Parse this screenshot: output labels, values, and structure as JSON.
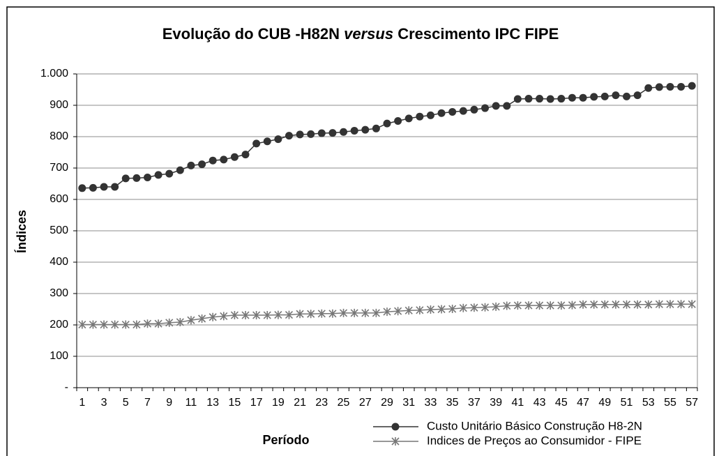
{
  "chart_data": {
    "type": "line",
    "title": [
      "Evolução do CUB -H82N",
      "versus",
      "Crescimento IPC FIPE"
    ],
    "y_label": "Índices",
    "x_label": "Período",
    "categories": [
      "1",
      null,
      "3",
      null,
      "5",
      null,
      "7",
      null,
      "9",
      null,
      "11",
      null,
      "13",
      null,
      "15",
      null,
      "17",
      null,
      "19",
      null,
      "21",
      null,
      "23",
      null,
      "25",
      null,
      "27",
      null,
      "29",
      null,
      "31",
      null,
      "33",
      null,
      "35",
      null,
      "37",
      null,
      "39",
      null,
      "41",
      null,
      "43",
      null,
      "45",
      null,
      "47",
      null,
      "49",
      null,
      "51",
      null,
      "53",
      null,
      "55",
      null,
      "57"
    ],
    "ylim": [
      0,
      1000
    ],
    "yticks": [
      {
        "value": 0,
        "label": "-"
      },
      100,
      200,
      300,
      400,
      500,
      600,
      700,
      800,
      900,
      {
        "value": 1000,
        "label": "1.000"
      }
    ],
    "grid": true,
    "legend": "bottom-right",
    "series": [
      {
        "name": "Custo Unitário Básico Construção H8-2N",
        "color": "#333333",
        "marker": "circle",
        "values": [
          636,
          637,
          640,
          640,
          667,
          668,
          670,
          678,
          682,
          693,
          708,
          712,
          724,
          727,
          735,
          743,
          778,
          785,
          792,
          803,
          807,
          808,
          811,
          812,
          815,
          819,
          822,
          826,
          842,
          850,
          858,
          864,
          868,
          875,
          879,
          882,
          886,
          891,
          898,
          898,
          920,
          921,
          921,
          920,
          921,
          924,
          924,
          927,
          928,
          932,
          928,
          932,
          955,
          958,
          959,
          959,
          962
        ]
      },
      {
        "name": "Indices de Preços ao Consumidor - FIPE",
        "color": "#777777",
        "marker": "asterisk",
        "values": [
          201,
          201,
          201,
          201,
          201,
          201,
          204,
          204,
          207,
          209,
          215,
          220,
          225,
          228,
          231,
          231,
          231,
          231,
          232,
          232,
          235,
          235,
          236,
          236,
          238,
          238,
          238,
          238,
          242,
          244,
          246,
          247,
          249,
          250,
          251,
          254,
          255,
          256,
          258,
          261,
          262,
          262,
          262,
          262,
          262,
          263,
          265,
          265,
          265,
          265,
          265,
          265,
          265,
          266,
          266,
          266,
          266
        ]
      }
    ]
  }
}
